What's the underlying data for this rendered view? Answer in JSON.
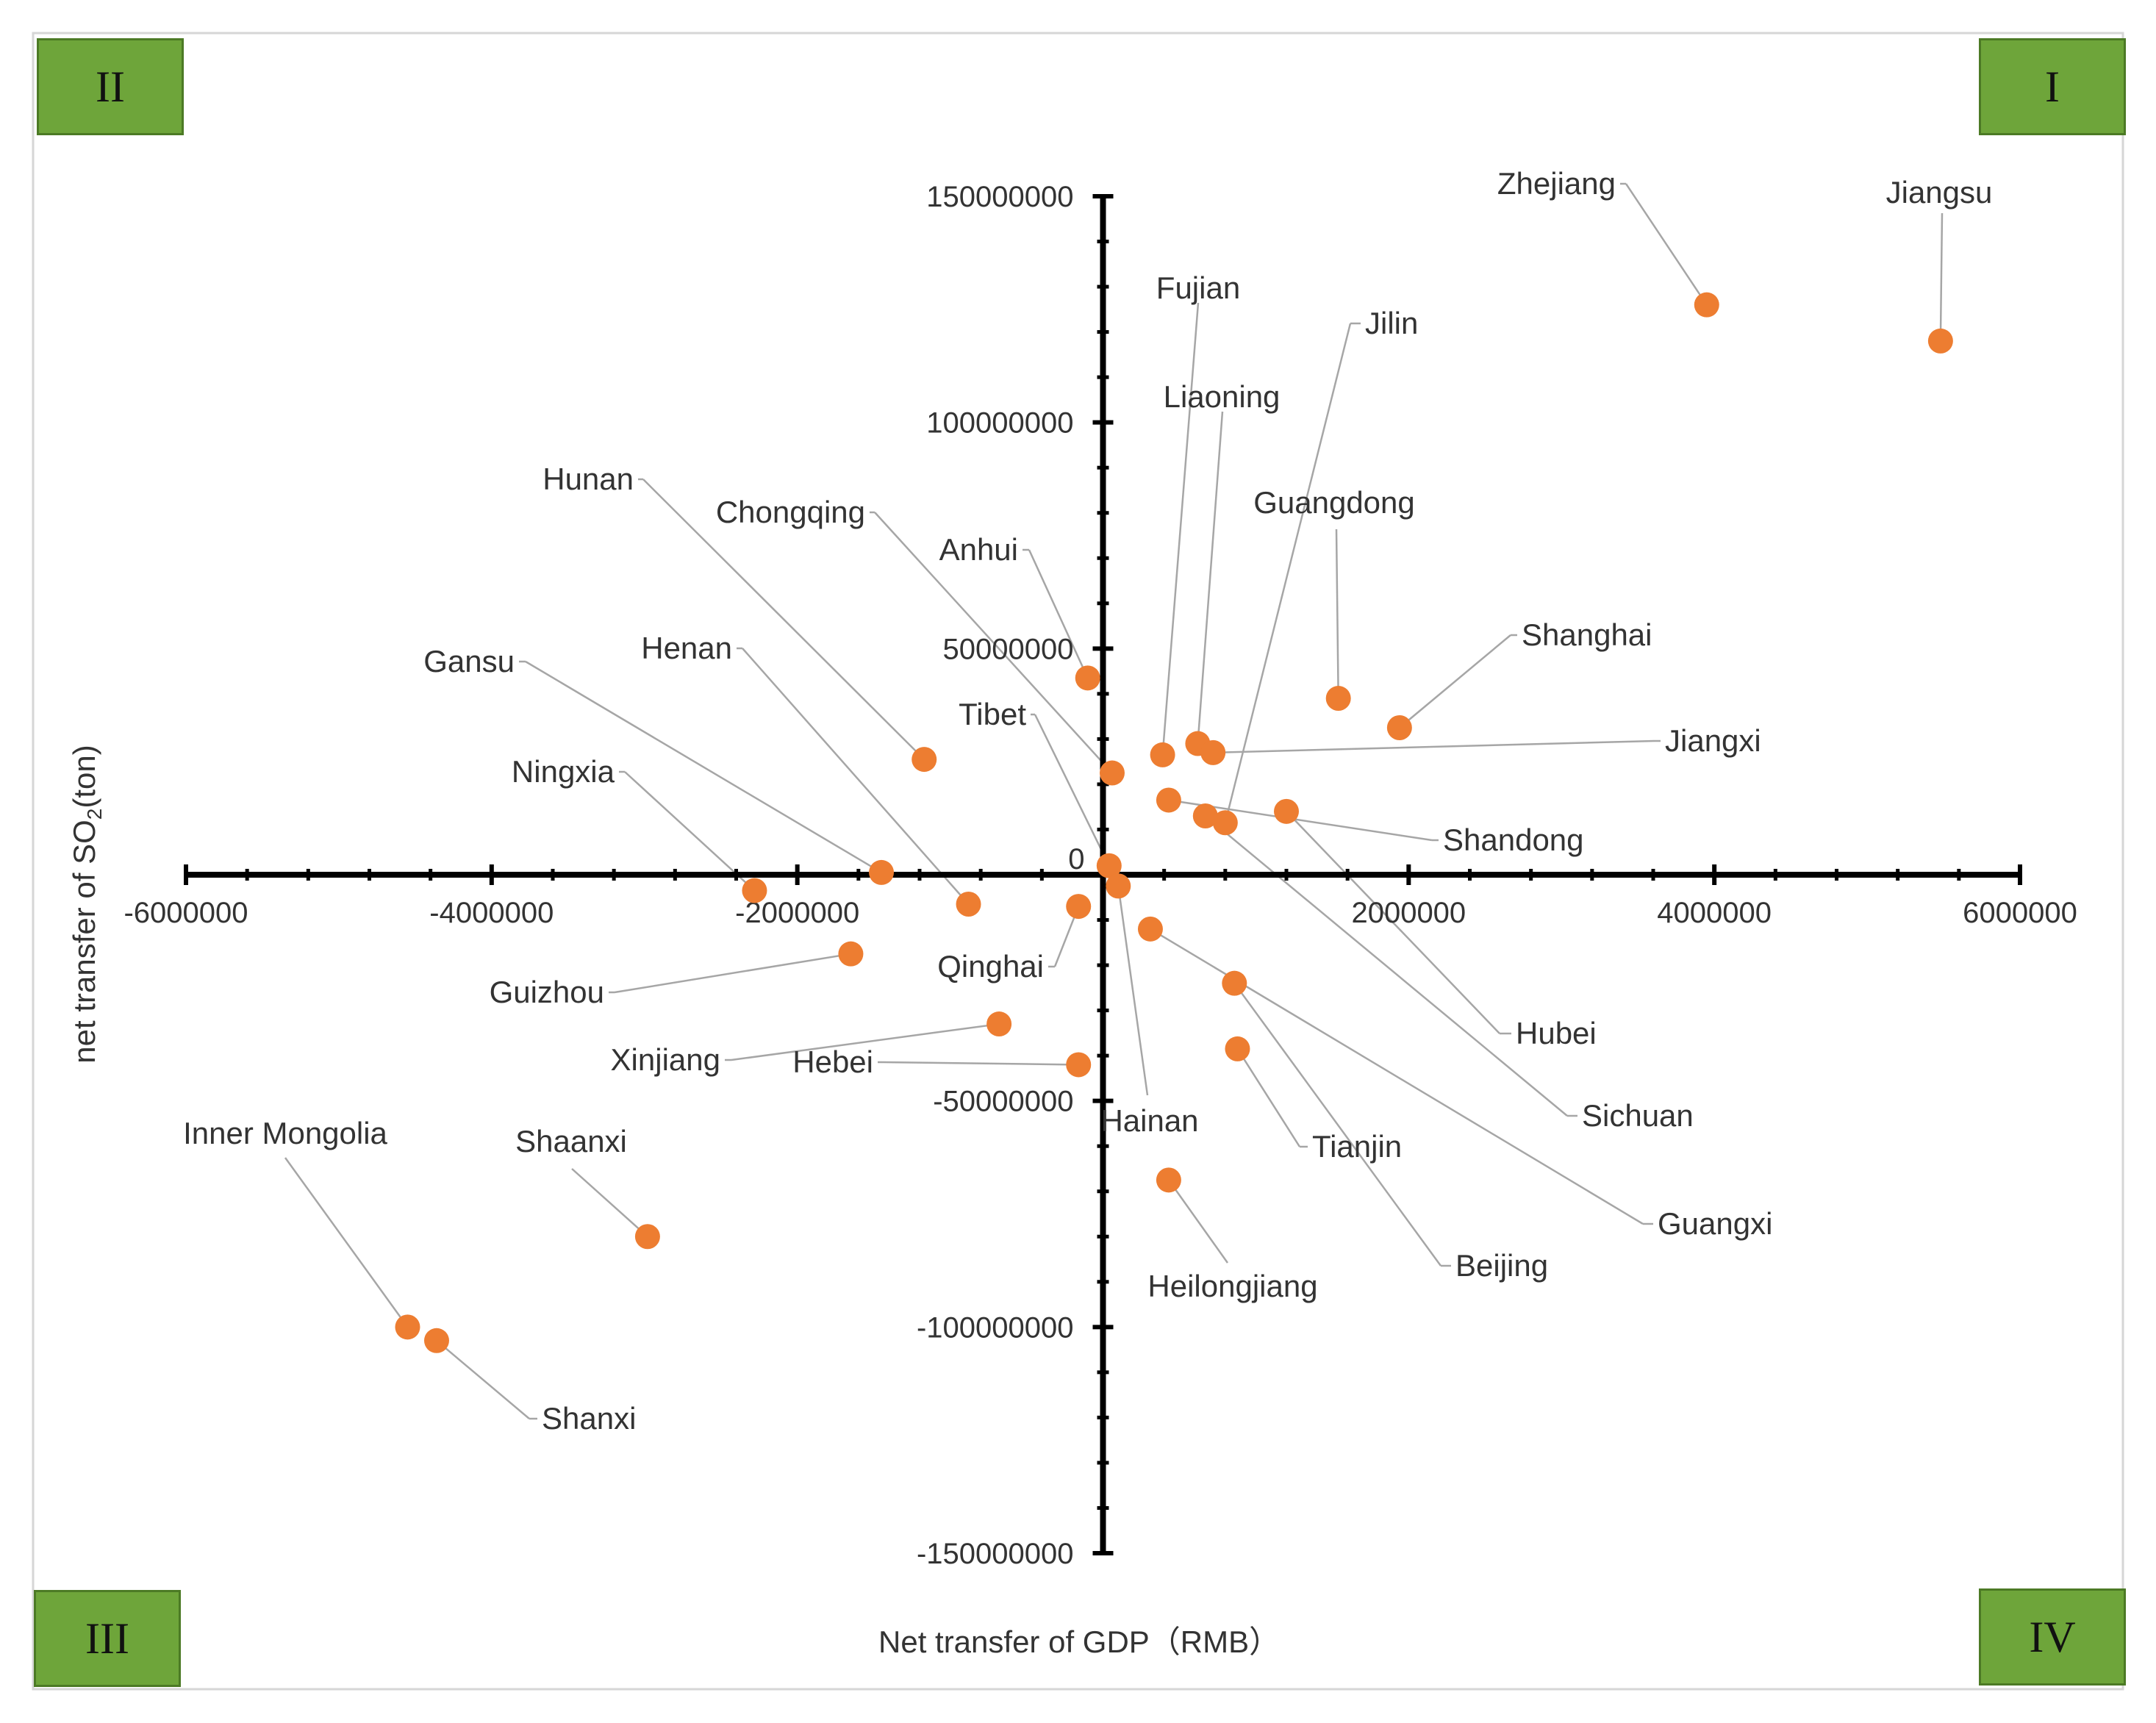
{
  "chart_data": {
    "type": "scatter",
    "title": "",
    "xlabel": "Net transfer of GDP（RMB）",
    "ylabel": "net transfer of SO",
    "ylabel_sub": "2",
    "ylabel_unit": "(ton)",
    "xlim": [
      -6000000,
      6000000
    ],
    "ylim": [
      -150000000,
      150000000
    ],
    "x_ticks": [
      "-6000000",
      "-4000000",
      "-2000000",
      "0",
      "2000000",
      "4000000",
      "6000000"
    ],
    "y_ticks": [
      "150000000",
      "100000000",
      "50000000",
      "-50000000",
      "-100000000",
      "-150000000"
    ],
    "origin_label": "0",
    "quadrants": {
      "q1": "I",
      "q2": "II",
      "q3": "III",
      "q4": "IV"
    },
    "marker_color": "#ed7d31",
    "points": [
      {
        "name": "Zhejiang",
        "x": 3950000,
        "y": 126000000
      },
      {
        "name": "Jiangsu",
        "x": 5480000,
        "y": 118000000
      },
      {
        "name": "Guangdong",
        "x": 1540000,
        "y": 39000000
      },
      {
        "name": "Shanghai",
        "x": 1940000,
        "y": 32500000
      },
      {
        "name": "Fujian",
        "x": 390000,
        "y": 26500000
      },
      {
        "name": "Liaoning",
        "x": 620000,
        "y": 29000000
      },
      {
        "name": "Jiangxi",
        "x": 720000,
        "y": 27000000
      },
      {
        "name": "Shandong",
        "x": 430000,
        "y": 16500000
      },
      {
        "name": "Jilin",
        "x": 800000,
        "y": 11500000
      },
      {
        "name": "Hubei",
        "x": 1200000,
        "y": 14000000
      },
      {
        "name": "Sichuan",
        "x": 670000,
        "y": 13000000
      },
      {
        "name": "Anhui",
        "x": -100000,
        "y": 43500000
      },
      {
        "name": "Chongqing",
        "x": 60000,
        "y": 22500000
      },
      {
        "name": "Hunan",
        "x": -1170000,
        "y": 25500000
      },
      {
        "name": "Tibet",
        "x": 40000,
        "y": 2000000
      },
      {
        "name": "Gansu",
        "x": -1450000,
        "y": 500000
      },
      {
        "name": "Ningxia",
        "x": -2280000,
        "y": -3500000
      },
      {
        "name": "Henan",
        "x": -880000,
        "y": -6500000
      },
      {
        "name": "Qinghai",
        "x": -160000,
        "y": -7000000
      },
      {
        "name": "Hainan",
        "x": 100000,
        "y": -2500000
      },
      {
        "name": "Guizhou",
        "x": -1650000,
        "y": -17500000
      },
      {
        "name": "Guangxi",
        "x": 310000,
        "y": -12000000
      },
      {
        "name": "Beijing",
        "x": 860000,
        "y": -24000000
      },
      {
        "name": "Xinjiang",
        "x": -680000,
        "y": -33000000
      },
      {
        "name": "Hebei",
        "x": -160000,
        "y": -42000000
      },
      {
        "name": "Tianjin",
        "x": 880000,
        "y": -38500000
      },
      {
        "name": "Heilongjiang",
        "x": 430000,
        "y": -67500000
      },
      {
        "name": "Shaanxi",
        "x": -2980000,
        "y": -80000000
      },
      {
        "name": "Inner Mongolia",
        "x": -4550000,
        "y": -100000000
      },
      {
        "name": "Shanxi",
        "x": -4360000,
        "y": -103000000
      }
    ]
  }
}
